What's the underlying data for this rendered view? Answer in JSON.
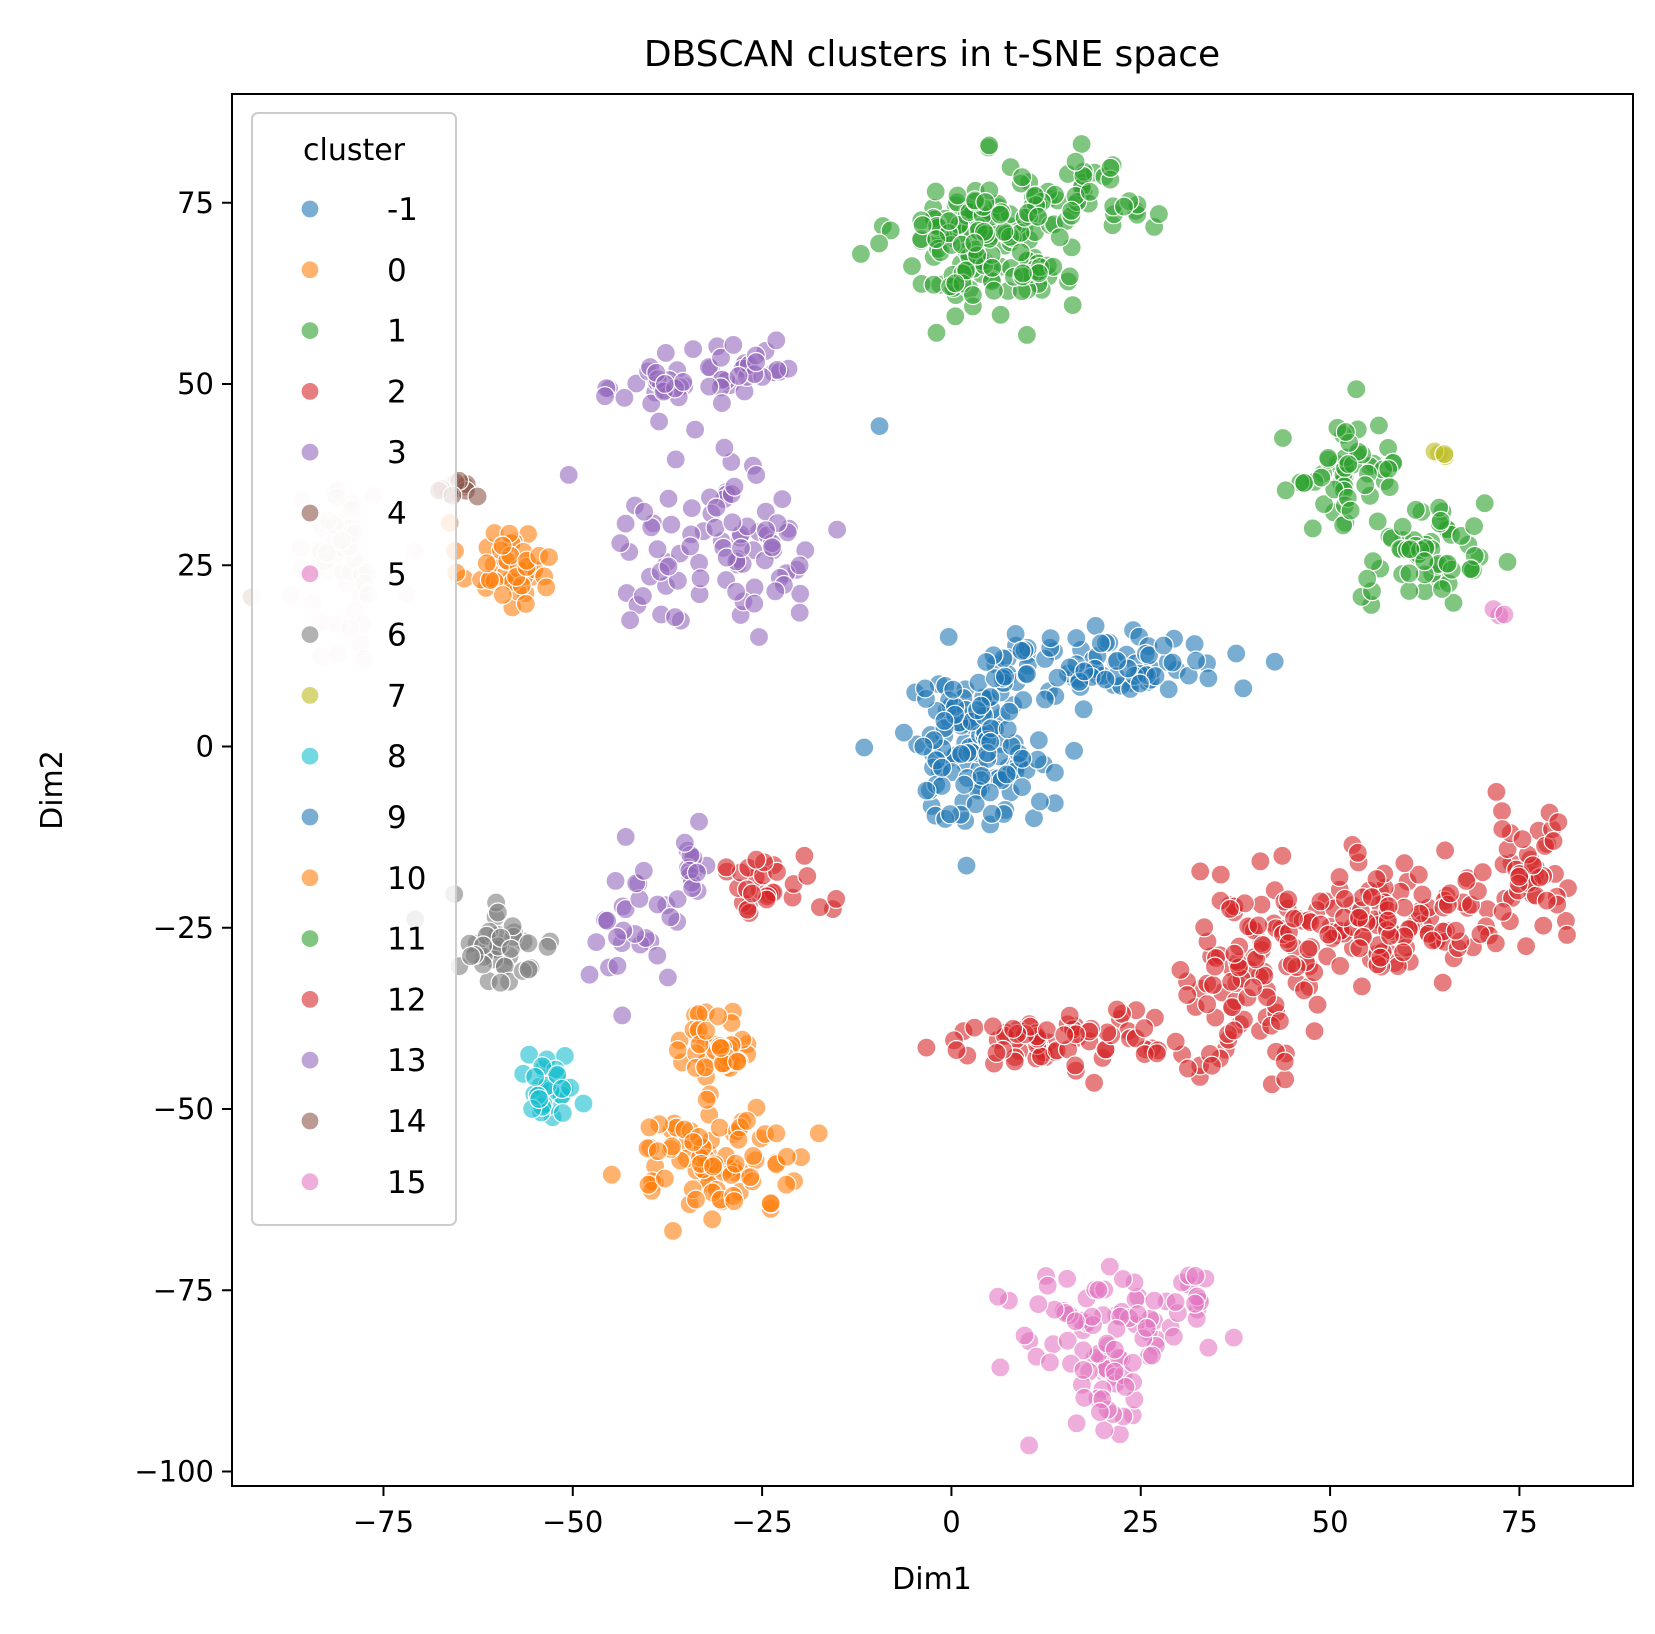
{
  "chart_data": {
    "type": "scatter",
    "title": "DBSCAN clusters in t-SNE space",
    "xlabel": "Dim1",
    "ylabel": "Dim2",
    "xlim": [
      -95,
      90
    ],
    "ylim": [
      -102,
      90
    ],
    "xticks": [
      -75,
      -50,
      -25,
      0,
      25,
      50,
      75
    ],
    "yticks": [
      -100,
      -75,
      -50,
      -25,
      0,
      25,
      50,
      75
    ],
    "xtick_labels": [
      "−75",
      "−50",
      "−25",
      "0",
      "25",
      "50",
      "75"
    ],
    "ytick_labels": [
      "−100",
      "−75",
      "−50",
      "−25",
      "0",
      "25",
      "50",
      "75"
    ],
    "grid": false,
    "legend": {
      "title": "cluster",
      "position": "top-left"
    },
    "series": [
      {
        "name": "-1",
        "color": "#1f77b4",
        "regions": [
          {
            "cx": -9.5,
            "cy": 44.2,
            "sx": 0,
            "sy": 0,
            "n": 1
          }
        ]
      },
      {
        "name": "0",
        "color": "#ff7f0e",
        "regions": [
          {
            "cx": -59,
            "cy": 25,
            "sx": 3,
            "sy": 3,
            "n": 45
          }
        ]
      },
      {
        "name": "1",
        "color": "#2ca02c",
        "regions": [
          {
            "cx": 5,
            "cy": 70,
            "sx": 6,
            "sy": 5,
            "n": 170
          },
          {
            "cx": 18,
            "cy": 75,
            "sx": 6,
            "sy": 3,
            "n": 40
          }
        ]
      },
      {
        "name": "2",
        "color": "#d62728",
        "regions": [
          {
            "cx": -24,
            "cy": -19,
            "sx": 4,
            "sy": 2,
            "n": 30
          }
        ]
      },
      {
        "name": "3",
        "color": "#9467bd",
        "regions": [
          {
            "cx": -38,
            "cy": 50,
            "sx": 3,
            "sy": 2,
            "n": 25
          },
          {
            "cx": -28,
            "cy": 52,
            "sx": 4,
            "sy": 3,
            "n": 30
          },
          {
            "cx": -30,
            "cy": 28,
            "sx": 8,
            "sy": 6,
            "n": 90
          }
        ]
      },
      {
        "name": "4",
        "color": "#8c564b",
        "regions": [
          {
            "cx": -64,
            "cy": 35.5,
            "sx": 1,
            "sy": 0.5,
            "n": 4
          }
        ]
      },
      {
        "name": "5",
        "color": "#e377c2",
        "regions": [
          {
            "cx": 72.5,
            "cy": 18,
            "sx": 0.5,
            "sy": 0.5,
            "n": 3
          }
        ]
      },
      {
        "name": "6",
        "color": "#7f7f7f",
        "regions": [
          {
            "cx": -60,
            "cy": -27,
            "sx": 4,
            "sy": 3,
            "n": 40
          }
        ]
      },
      {
        "name": "7",
        "color": "#bcbd22",
        "regions": [
          {
            "cx": 65,
            "cy": 40.5,
            "sx": 0.6,
            "sy": 0.4,
            "n": 4
          }
        ]
      },
      {
        "name": "8",
        "color": "#17becf",
        "regions": [
          {
            "cx": -53,
            "cy": -47,
            "sx": 1.5,
            "sy": 2.5,
            "n": 30
          }
        ]
      },
      {
        "name": "9",
        "color": "#1f77b4",
        "regions": [
          {
            "cx": 3,
            "cy": 0,
            "sx": 5,
            "sy": 5,
            "n": 130
          },
          {
            "cx": 20,
            "cy": 11,
            "sx": 8,
            "sy": 2.5,
            "n": 90
          }
        ]
      },
      {
        "name": "10",
        "color": "#ff7f0e",
        "regions": [
          {
            "cx": -31,
            "cy": -41,
            "sx": 2.5,
            "sy": 2.5,
            "n": 40
          },
          {
            "cx": -31,
            "cy": -57,
            "sx": 6,
            "sy": 3.5,
            "n": 90
          }
        ]
      },
      {
        "name": "11",
        "color": "#2ca02c",
        "regions": [
          {
            "cx": 52,
            "cy": 38,
            "sx": 4,
            "sy": 4,
            "n": 50
          },
          {
            "cx": 63,
            "cy": 26,
            "sx": 4,
            "sy": 4,
            "n": 60
          }
        ]
      },
      {
        "name": "12",
        "color": "#d62728",
        "regions": [
          {
            "cx": 15,
            "cy": -41,
            "sx": 10,
            "sy": 2,
            "n": 80
          },
          {
            "cx": 40,
            "cy": -33,
            "sx": 4,
            "sy": 5,
            "n": 60
          },
          {
            "cx": 55,
            "cy": -24,
            "sx": 10,
            "sy": 4,
            "n": 160
          },
          {
            "cx": 77,
            "cy": -17,
            "sx": 3,
            "sy": 5,
            "n": 40
          }
        ]
      },
      {
        "name": "13",
        "color": "#9467bd",
        "regions": [
          {
            "cx": -42,
            "cy": -25,
            "sx": 3,
            "sy": 4,
            "n": 30
          },
          {
            "cx": -34,
            "cy": -17,
            "sx": 1,
            "sy": 2,
            "n": 15
          }
        ]
      },
      {
        "name": "14",
        "color": "#8c564b",
        "regions": [
          {
            "cx": -66,
            "cy": 35,
            "sx": 2,
            "sy": 1,
            "n": 6
          }
        ]
      },
      {
        "name": "15",
        "color": "#e377c2",
        "regions": [
          {
            "cx": 20,
            "cy": -80,
            "sx": 7,
            "sy": 4,
            "n": 70
          },
          {
            "cx": 32,
            "cy": -75,
            "sx": 1.5,
            "sy": 1.5,
            "n": 10
          },
          {
            "cx": 22,
            "cy": -88,
            "sx": 3,
            "sy": 3,
            "n": 25
          }
        ]
      },
      {
        "name": "",
        "color": "#e8dcd6",
        "legend": false,
        "regions": [
          {
            "cx": -80,
            "cy": 25,
            "sx": 3,
            "sy": 5,
            "n": 55
          }
        ]
      }
    ]
  }
}
